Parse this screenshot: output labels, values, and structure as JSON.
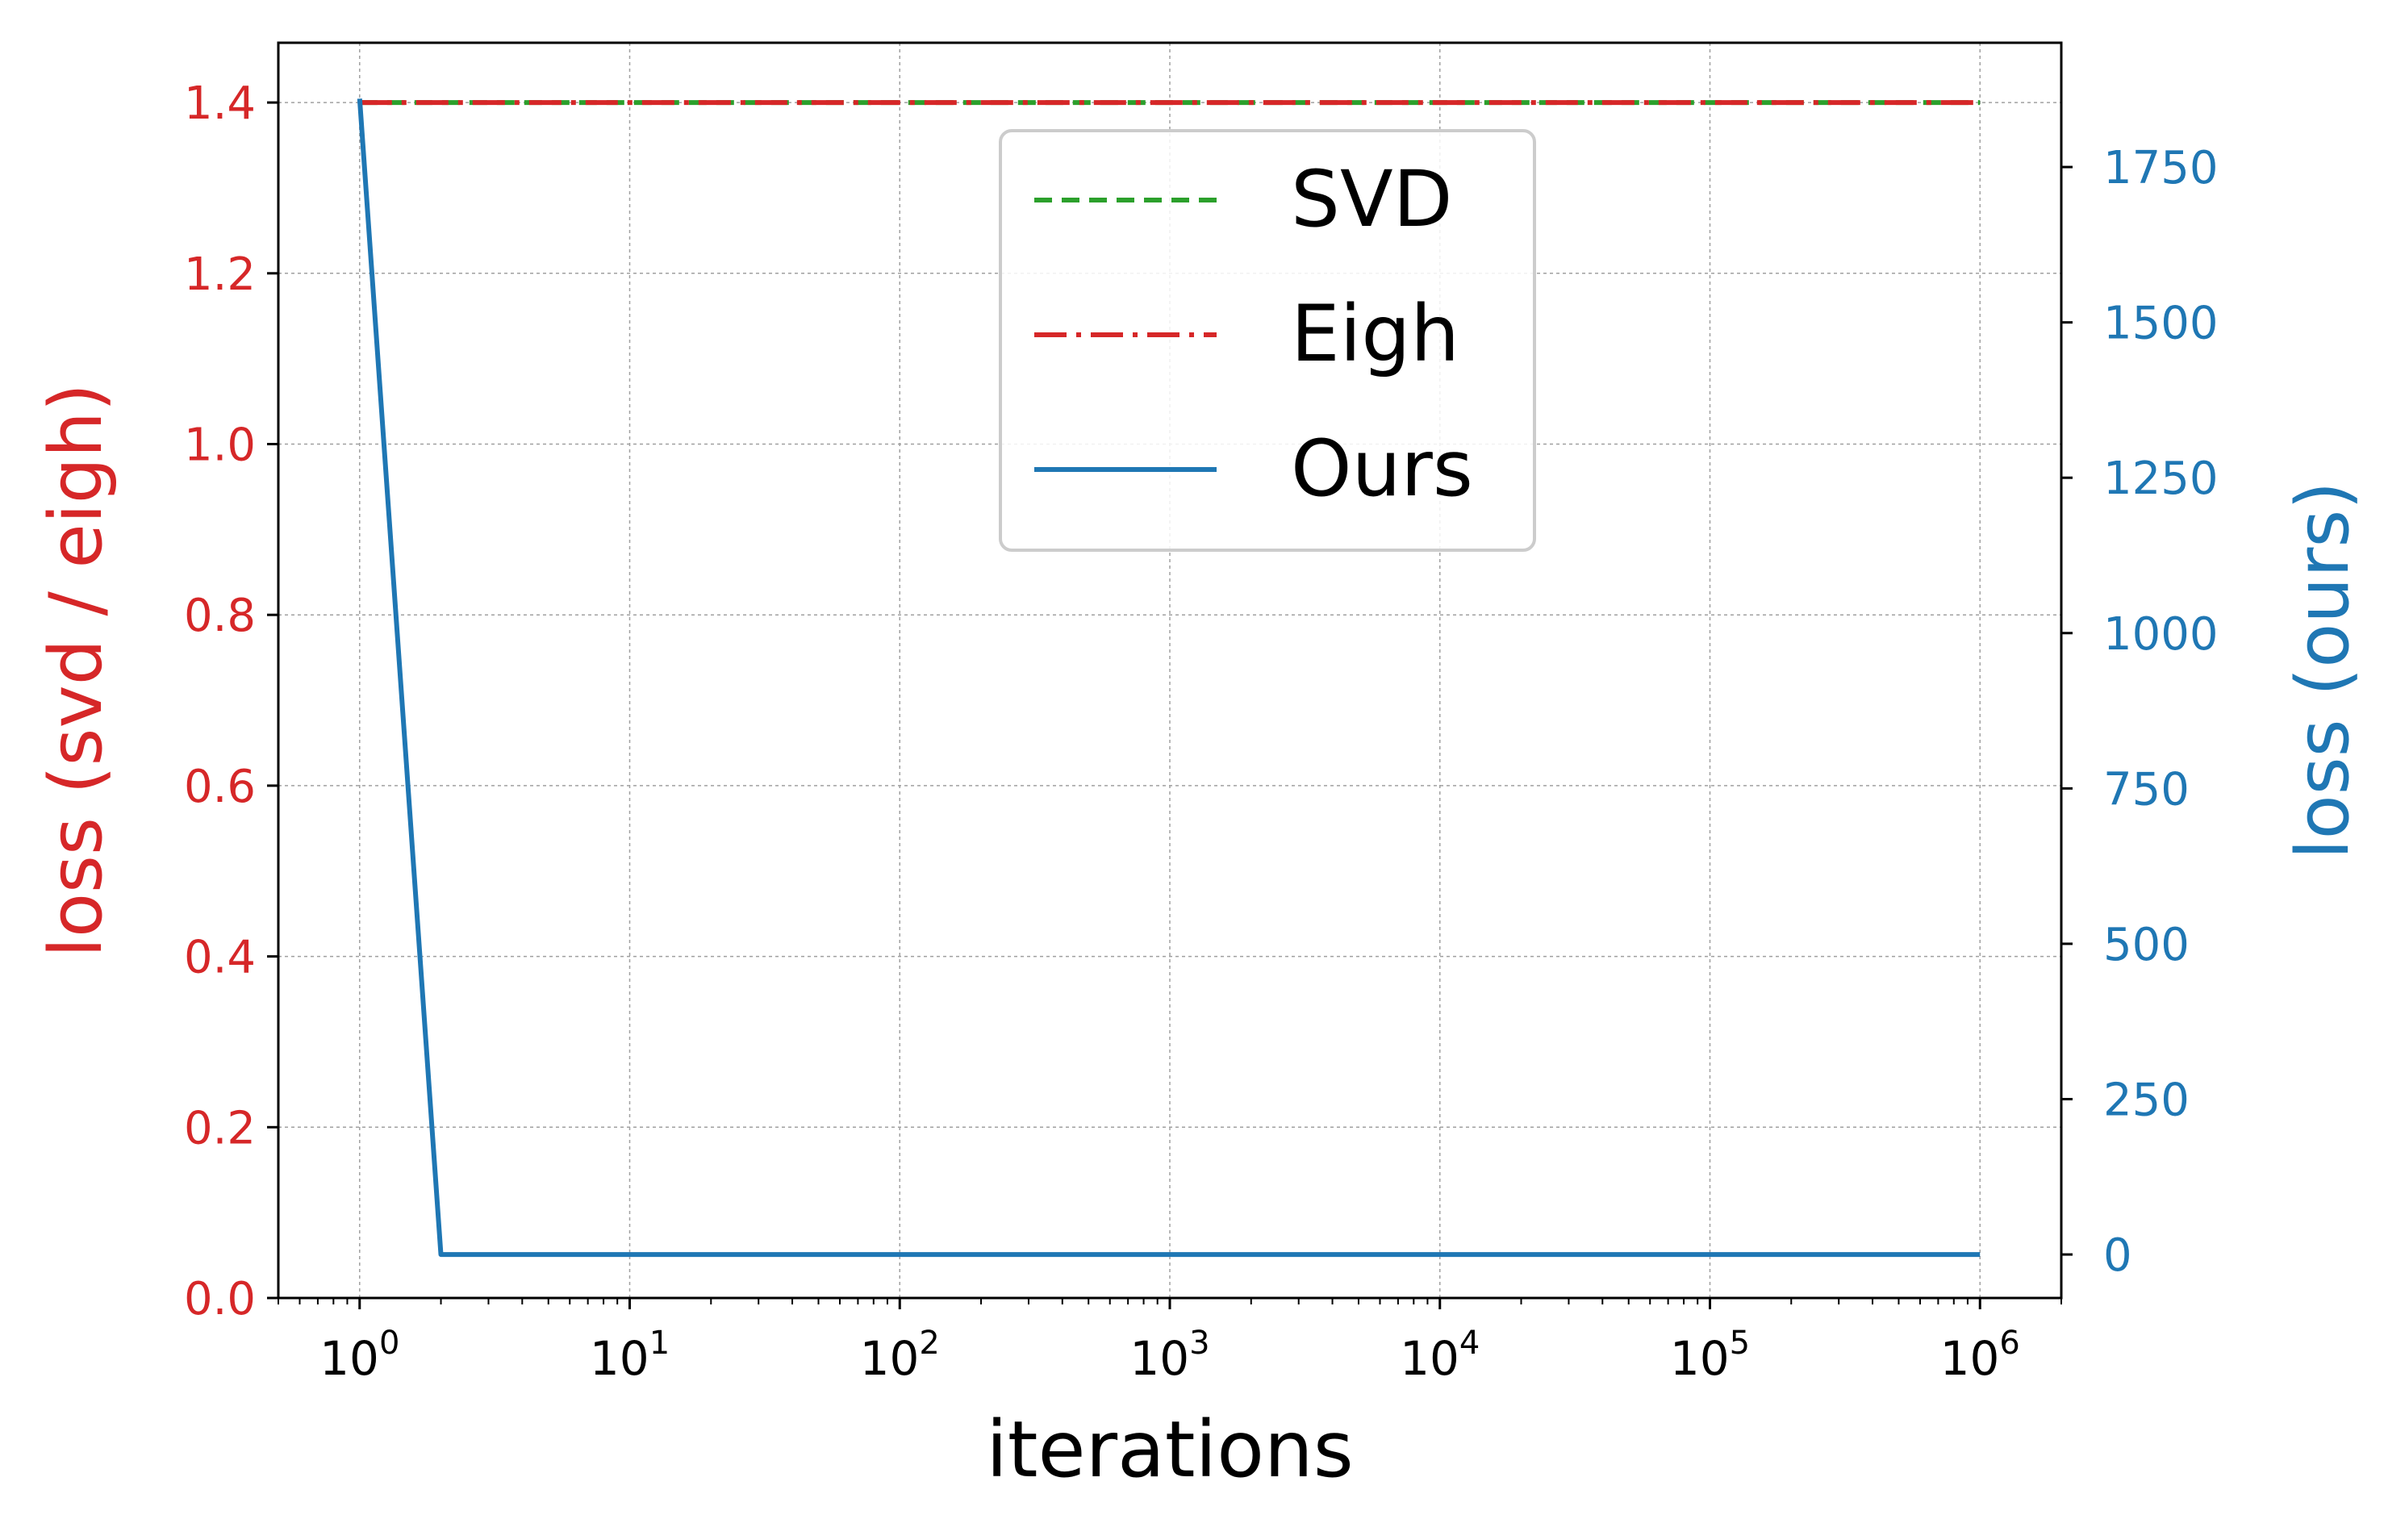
{
  "chart_data": {
    "type": "line",
    "x_scale": "log",
    "x_ticks": [
      {
        "value": 1,
        "base": "10",
        "exp": "0"
      },
      {
        "value": 10,
        "base": "10",
        "exp": "1"
      },
      {
        "value": 100,
        "base": "10",
        "exp": "2"
      },
      {
        "value": 1000,
        "base": "10",
        "exp": "3"
      },
      {
        "value": 10000,
        "base": "10",
        "exp": "4"
      },
      {
        "value": 100000,
        "base": "10",
        "exp": "5"
      },
      {
        "value": 1000000,
        "base": "10",
        "exp": "6"
      }
    ],
    "xlim": [
      0.5,
      2000000
    ],
    "xlabel": "iterations",
    "ylabel_left": "loss (svd / eigh)",
    "ylabel_right": "loss (ours)",
    "ylim_left": [
      0,
      1.47
    ],
    "ylim_right": [
      -70,
      1950
    ],
    "yticks_left": [
      "0.0",
      "0.2",
      "0.4",
      "0.6",
      "0.8",
      "1.0",
      "1.2",
      "1.4"
    ],
    "yticks_right": [
      "0",
      "250",
      "500",
      "750",
      "1000",
      "1250",
      "1500",
      "1750"
    ],
    "grid": true,
    "legend_position": "top-center",
    "series": [
      {
        "name": "SVD",
        "axis": "left",
        "style": "dashed",
        "color": "#2ca02c",
        "x": [
          1,
          1000000
        ],
        "y": [
          1.4,
          1.4
        ]
      },
      {
        "name": "Eigh",
        "axis": "left",
        "style": "dashdot",
        "color": "#d62728",
        "x": [
          1,
          1000000
        ],
        "y": [
          1.4,
          1.4
        ]
      },
      {
        "name": "Ours",
        "axis": "right",
        "style": "solid",
        "color": "#1f77b4",
        "x": [
          1,
          2,
          1000000
        ],
        "y": [
          1860,
          0,
          0
        ]
      }
    ],
    "colors": {
      "left_axis": "#d62728",
      "right_axis": "#1f77b4",
      "grid": "#a0a0a0"
    }
  }
}
